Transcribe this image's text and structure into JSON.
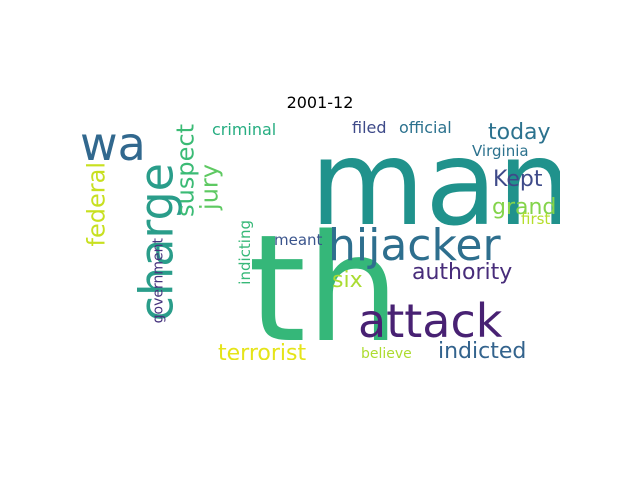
{
  "title": "2001-12",
  "words": [
    {
      "text": "man",
      "color": "#20928c",
      "rotated": false
    },
    {
      "text": "th",
      "color": "#35b779",
      "rotated": false
    },
    {
      "text": "wa",
      "color": "#31688e",
      "rotated": false
    },
    {
      "text": "charge",
      "color": "#2a9d8a",
      "rotated": true
    },
    {
      "text": "hijacker",
      "color": "#2e6f8e",
      "rotated": false
    },
    {
      "text": "attack",
      "color": "#482173",
      "rotated": false
    },
    {
      "text": "suspect",
      "color": "#3bbb75",
      "rotated": true
    },
    {
      "text": "jury",
      "color": "#5ec962",
      "rotated": true
    },
    {
      "text": "federal",
      "color": "#c8e020",
      "rotated": true
    },
    {
      "text": "criminal",
      "color": "#26ad81",
      "rotated": false
    },
    {
      "text": "filed",
      "color": "#3e4a89",
      "rotated": false
    },
    {
      "text": "official",
      "color": "#2c728e",
      "rotated": false
    },
    {
      "text": "today",
      "color": "#2c728e",
      "rotated": false
    },
    {
      "text": "Virginia",
      "color": "#2c728e",
      "rotated": false
    },
    {
      "text": "Kept",
      "color": "#3e4a89",
      "rotated": false
    },
    {
      "text": "grand",
      "color": "#84d44b",
      "rotated": false
    },
    {
      "text": "first",
      "color": "#b5de2b",
      "rotated": false
    },
    {
      "text": "authority",
      "color": "#472c7a",
      "rotated": false
    },
    {
      "text": "six",
      "color": "#aadc32",
      "rotated": false
    },
    {
      "text": "meant",
      "color": "#3a548c",
      "rotated": false
    },
    {
      "text": "indicting",
      "color": "#37b878",
      "rotated": true
    },
    {
      "text": "government",
      "color": "#46337e",
      "rotated": true
    },
    {
      "text": "terrorist",
      "color": "#e5e419",
      "rotated": false
    },
    {
      "text": "believe",
      "color": "#addc30",
      "rotated": false
    },
    {
      "text": "indicted",
      "color": "#33638d",
      "rotated": false
    }
  ]
}
